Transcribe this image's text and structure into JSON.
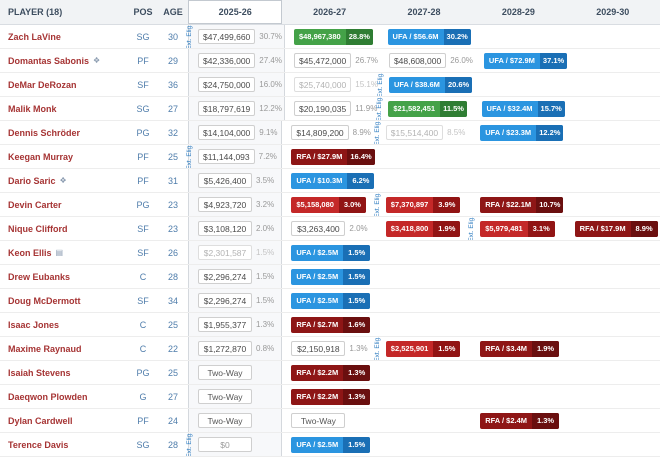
{
  "labels": {
    "ext_eligible": "Ext. Elig."
  },
  "header": {
    "columns": [
      "PLAYER (18)",
      "POS",
      "AGE",
      "2025-26",
      "2026-27",
      "2027-28",
      "2028-29",
      "2029-30"
    ],
    "selected_column": "2025-26"
  },
  "colors": {
    "player_option_green": "#44a248",
    "ufa_blue": "#2b95e0",
    "team_option_red": "#c42828",
    "rfa_dark_red": "#8e1616",
    "player_name_red": "#a63434",
    "pos_age_blue": "#4f7dab",
    "ext_eligible_blue": "#2e7cc0",
    "header_bg": "#f1f3f5"
  },
  "rows": [
    {
      "player": "Zach LaVine",
      "pos": "SG",
      "age": "30",
      "cells": [
        {
          "type": "plain",
          "value": "$47,499,660",
          "pct": "30.7%",
          "ext": true
        },
        {
          "type": "green",
          "value": "$48,967,380",
          "pct": "28.8%"
        },
        {
          "type": "blue",
          "value": "UFA / $56.6M",
          "pct": "30.2%"
        },
        {
          "type": "empty"
        },
        {
          "type": "empty"
        }
      ]
    },
    {
      "player": "Domantas Sabonis",
      "icon": {
        "name": "contract-flag-icon",
        "glyph": "❖"
      },
      "pos": "PF",
      "age": "29",
      "cells": [
        {
          "type": "plain",
          "value": "$42,336,000",
          "pct": "27.4%"
        },
        {
          "type": "plain",
          "value": "$45,472,000",
          "pct": "26.7%"
        },
        {
          "type": "plain",
          "value": "$48,608,000",
          "pct": "26.0%"
        },
        {
          "type": "blue",
          "value": "UFA / $72.9M",
          "pct": "37.1%"
        },
        {
          "type": "empty"
        }
      ]
    },
    {
      "player": "DeMar DeRozan",
      "pos": "SF",
      "age": "36",
      "cells": [
        {
          "type": "plain",
          "value": "$24,750,000",
          "pct": "16.0%"
        },
        {
          "type": "gray",
          "value": "$25,740,000",
          "pct": "15.1%"
        },
        {
          "type": "blue",
          "value": "UFA / $38.6M",
          "pct": "20.6%",
          "ext": true
        },
        {
          "type": "empty"
        },
        {
          "type": "empty"
        }
      ]
    },
    {
      "player": "Malik Monk",
      "pos": "SG",
      "age": "27",
      "cells": [
        {
          "type": "plain",
          "value": "$18,797,619",
          "pct": "12.2%"
        },
        {
          "type": "plain",
          "value": "$20,190,035",
          "pct": "11.9%"
        },
        {
          "type": "green",
          "value": "$21,582,451",
          "pct": "11.5%",
          "ext": true
        },
        {
          "type": "blue",
          "value": "UFA / $32.4M",
          "pct": "15.7%"
        },
        {
          "type": "empty"
        }
      ]
    },
    {
      "player": "Dennis Schröder",
      "pos": "PG",
      "age": "32",
      "cells": [
        {
          "type": "plain",
          "value": "$14,104,000",
          "pct": "9.1%"
        },
        {
          "type": "plain",
          "value": "$14,809,200",
          "pct": "8.9%"
        },
        {
          "type": "gray",
          "value": "$15,514,400",
          "pct": "8.5%",
          "ext": true
        },
        {
          "type": "blue",
          "value": "UFA / $23.3M",
          "pct": "12.2%"
        },
        {
          "type": "empty"
        }
      ]
    },
    {
      "player": "Keegan Murray",
      "pos": "PF",
      "age": "25",
      "cells": [
        {
          "type": "plain",
          "value": "$11,144,093",
          "pct": "7.2%",
          "ext": true
        },
        {
          "type": "rfa",
          "value": "RFA / $27.9M",
          "pct": "16.4%"
        },
        {
          "type": "empty"
        },
        {
          "type": "empty"
        },
        {
          "type": "empty"
        }
      ]
    },
    {
      "player": "Dario Saric",
      "icon": {
        "name": "contract-flag-icon",
        "glyph": "❖"
      },
      "pos": "PF",
      "age": "31",
      "cells": [
        {
          "type": "plain",
          "value": "$5,426,400",
          "pct": "3.5%"
        },
        {
          "type": "blue",
          "value": "UFA / $10.3M",
          "pct": "6.2%"
        },
        {
          "type": "empty"
        },
        {
          "type": "empty"
        },
        {
          "type": "empty"
        }
      ]
    },
    {
      "player": "Devin Carter",
      "pos": "PG",
      "age": "23",
      "cells": [
        {
          "type": "plain",
          "value": "$4,923,720",
          "pct": "3.2%"
        },
        {
          "type": "red",
          "value": "$5,158,080",
          "pct": "3.0%"
        },
        {
          "type": "red",
          "value": "$7,370,897",
          "pct": "3.9%",
          "ext": true
        },
        {
          "type": "rfa",
          "value": "RFA / $22.1M",
          "pct": "10.7%"
        },
        {
          "type": "empty"
        }
      ]
    },
    {
      "player": "Nique Clifford",
      "pos": "SF",
      "age": "23",
      "cells": [
        {
          "type": "plain",
          "value": "$3,108,120",
          "pct": "2.0%"
        },
        {
          "type": "plain",
          "value": "$3,263,400",
          "pct": "2.0%"
        },
        {
          "type": "red",
          "value": "$3,418,800",
          "pct": "1.9%"
        },
        {
          "type": "red",
          "value": "$5,979,481",
          "pct": "3.1%",
          "ext": true
        },
        {
          "type": "rfa",
          "value": "RFA / $17.9M",
          "pct": "8.9%"
        }
      ]
    },
    {
      "player": "Keon Ellis",
      "icon": {
        "name": "report-icon",
        "glyph": "▤"
      },
      "pos": "SF",
      "age": "26",
      "cells": [
        {
          "type": "gray",
          "value": "$2,301,587",
          "pct": "1.5%"
        },
        {
          "type": "blue",
          "value": "UFA / $2.5M",
          "pct": "1.5%"
        },
        {
          "type": "empty"
        },
        {
          "type": "empty"
        },
        {
          "type": "empty"
        }
      ]
    },
    {
      "player": "Drew Eubanks",
      "pos": "C",
      "age": "28",
      "cells": [
        {
          "type": "plain",
          "value": "$2,296,274",
          "pct": "1.5%"
        },
        {
          "type": "blue",
          "value": "UFA / $2.5M",
          "pct": "1.5%"
        },
        {
          "type": "empty"
        },
        {
          "type": "empty"
        },
        {
          "type": "empty"
        }
      ]
    },
    {
      "player": "Doug McDermott",
      "pos": "SF",
      "age": "34",
      "cells": [
        {
          "type": "plain",
          "value": "$2,296,274",
          "pct": "1.5%"
        },
        {
          "type": "blue",
          "value": "UFA / $2.5M",
          "pct": "1.5%"
        },
        {
          "type": "empty"
        },
        {
          "type": "empty"
        },
        {
          "type": "empty"
        }
      ]
    },
    {
      "player": "Isaac Jones",
      "pos": "C",
      "age": "25",
      "cells": [
        {
          "type": "plain",
          "value": "$1,955,377",
          "pct": "1.3%"
        },
        {
          "type": "rfa",
          "value": "RFA / $2.7M",
          "pct": "1.6%"
        },
        {
          "type": "empty"
        },
        {
          "type": "empty"
        },
        {
          "type": "empty"
        }
      ]
    },
    {
      "player": "Maxime Raynaud",
      "pos": "C",
      "age": "22",
      "cells": [
        {
          "type": "plain",
          "value": "$1,272,870",
          "pct": "0.8%"
        },
        {
          "type": "plain",
          "value": "$2,150,918",
          "pct": "1.3%"
        },
        {
          "type": "red",
          "value": "$2,525,901",
          "pct": "1.5%",
          "ext": true
        },
        {
          "type": "rfa",
          "value": "RFA / $3.4M",
          "pct": "1.9%"
        },
        {
          "type": "empty"
        }
      ]
    },
    {
      "player": "Isaiah Stevens",
      "pos": "PG",
      "age": "25",
      "cells": [
        {
          "type": "twoway",
          "value": "Two-Way"
        },
        {
          "type": "rfa",
          "value": "RFA / $2.2M",
          "pct": "1.3%"
        },
        {
          "type": "empty"
        },
        {
          "type": "empty"
        },
        {
          "type": "empty"
        }
      ]
    },
    {
      "player": "Daeqwon Plowden",
      "pos": "G",
      "age": "27",
      "cells": [
        {
          "type": "twoway",
          "value": "Two-Way"
        },
        {
          "type": "rfa",
          "value": "RFA / $2.2M",
          "pct": "1.3%"
        },
        {
          "type": "empty"
        },
        {
          "type": "empty"
        },
        {
          "type": "empty"
        }
      ]
    },
    {
      "player": "Dylan Cardwell",
      "pos": "PF",
      "age": "24",
      "cells": [
        {
          "type": "twoway",
          "value": "Two-Way"
        },
        {
          "type": "twoway",
          "value": "Two-Way"
        },
        {
          "type": "empty"
        },
        {
          "type": "rfa",
          "value": "RFA / $2.4M",
          "pct": "1.3%"
        },
        {
          "type": "empty"
        }
      ]
    },
    {
      "player": "Terence Davis",
      "pos": "SG",
      "age": "28",
      "cells": [
        {
          "type": "zero",
          "value": "$0",
          "ext": true
        },
        {
          "type": "blue",
          "value": "UFA / $2.5M",
          "pct": "1.5%"
        },
        {
          "type": "empty"
        },
        {
          "type": "empty"
        },
        {
          "type": "empty"
        }
      ]
    }
  ]
}
